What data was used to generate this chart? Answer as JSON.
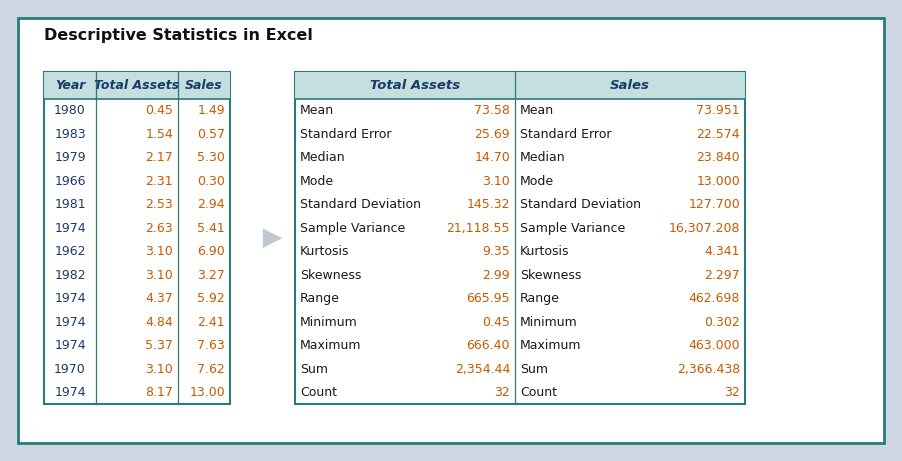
{
  "title": "Descriptive Statistics in Excel",
  "bg_outer": "#cdd8e3",
  "bg_inner": "#ffffff",
  "border_color": "#2a7a7a",
  "header_bg": "#c5dede",
  "header_text_color": "#1a3a6b",
  "year_color": "#1a3a6b",
  "value_color": "#c85a00",
  "stat_label_color": "#1a1a1a",
  "stat_value_color": "#c85a00",
  "left_table": {
    "headers": [
      "Year",
      "Total Assets",
      "Sales"
    ],
    "rows": [
      [
        "1980",
        "0.45",
        "1.49"
      ],
      [
        "1983",
        "1.54",
        "0.57"
      ],
      [
        "1979",
        "2.17",
        "5.30"
      ],
      [
        "1966",
        "2.31",
        "0.30"
      ],
      [
        "1981",
        "2.53",
        "2.94"
      ],
      [
        "1974",
        "2.63",
        "5.41"
      ],
      [
        "1962",
        "3.10",
        "6.90"
      ],
      [
        "1982",
        "3.10",
        "3.27"
      ],
      [
        "1974",
        "4.37",
        "5.92"
      ],
      [
        "1974",
        "4.84",
        "2.41"
      ],
      [
        "1974",
        "5.37",
        "7.63"
      ],
      [
        "1970",
        "3.10",
        "7.62"
      ],
      [
        "1974",
        "8.17",
        "13.00"
      ]
    ]
  },
  "right_table": {
    "stats": [
      [
        "Mean",
        "73.58",
        "Mean",
        "73.951"
      ],
      [
        "Standard Error",
        "25.69",
        "Standard Error",
        "22.574"
      ],
      [
        "Median",
        "14.70",
        "Median",
        "23.840"
      ],
      [
        "Mode",
        "3.10",
        "Mode",
        "13.000"
      ],
      [
        "Standard Deviation",
        "145.32",
        "Standard Deviation",
        "127.700"
      ],
      [
        "Sample Variance",
        "21,118.55",
        "Sample Variance",
        "16,307.208"
      ],
      [
        "Kurtosis",
        "9.35",
        "Kurtosis",
        "4.341"
      ],
      [
        "Skewness",
        "2.99",
        "Skewness",
        "2.297"
      ],
      [
        "Range",
        "665.95",
        "Range",
        "462.698"
      ],
      [
        "Minimum",
        "0.45",
        "Minimum",
        "0.302"
      ],
      [
        "Maximum",
        "666.40",
        "Maximum",
        "463.000"
      ],
      [
        "Sum",
        "2,354.44",
        "Sum",
        "2,366.438"
      ],
      [
        "Count",
        "32",
        "Count",
        "32"
      ]
    ]
  },
  "fig_w": 9.02,
  "fig_h": 4.61,
  "dpi": 100
}
